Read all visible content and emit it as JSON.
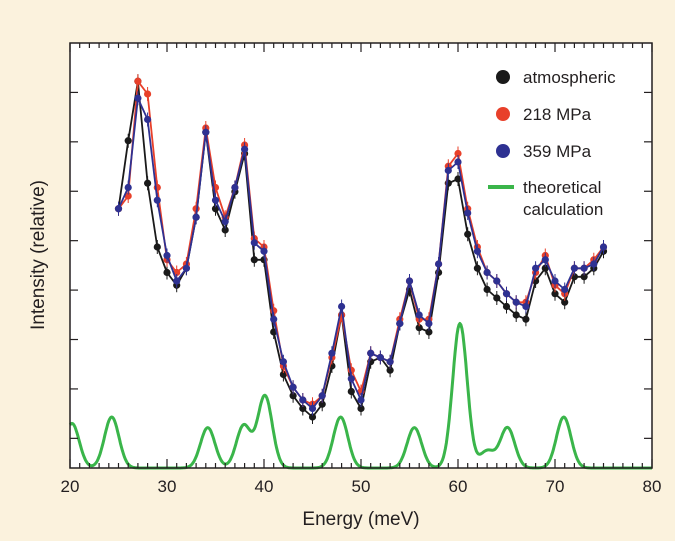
{
  "chart_data": {
    "type": "line",
    "xlabel": "Energy (meV)",
    "ylabel": "Intensity (relative)",
    "xlim": [
      20,
      80
    ],
    "ylim": [
      0,
      1
    ],
    "xticks": [
      20,
      30,
      40,
      50,
      60,
      70,
      80
    ],
    "yticks_labeled": false,
    "grid": false,
    "legend_position": "top-right",
    "x": [
      25,
      26,
      27,
      28,
      29,
      30,
      31,
      32,
      33,
      34,
      35,
      36,
      37,
      38,
      39,
      40,
      41,
      42,
      43,
      44,
      45,
      46,
      47,
      48,
      49,
      50,
      51,
      52,
      53,
      54,
      55,
      56,
      57,
      58,
      59,
      60,
      61,
      62,
      63,
      64,
      65,
      66,
      67,
      68,
      69,
      70,
      71,
      72,
      73,
      74,
      75
    ],
    "series": [
      {
        "name": "atmospheric",
        "marker": "circle",
        "color": "#1a1a1a",
        "values": [
          0.61,
          0.77,
          0.91,
          0.67,
          0.52,
          0.46,
          0.43,
          0.47,
          0.59,
          0.79,
          0.61,
          0.56,
          0.65,
          0.74,
          0.49,
          0.49,
          0.32,
          0.22,
          0.17,
          0.14,
          0.12,
          0.15,
          0.24,
          0.36,
          0.18,
          0.14,
          0.25,
          0.26,
          0.23,
          0.34,
          0.42,
          0.33,
          0.32,
          0.46,
          0.67,
          0.68,
          0.55,
          0.47,
          0.42,
          0.4,
          0.38,
          0.36,
          0.35,
          0.44,
          0.47,
          0.41,
          0.39,
          0.45,
          0.45,
          0.47,
          0.51
        ]
      },
      {
        "name": "218 MPa",
        "marker": "circle",
        "color": "#e8402a",
        "values": [
          0.61,
          0.64,
          0.91,
          0.88,
          0.66,
          0.49,
          0.46,
          0.48,
          0.61,
          0.8,
          0.66,
          0.59,
          0.66,
          0.76,
          0.54,
          0.52,
          0.37,
          0.24,
          0.19,
          0.16,
          0.15,
          0.17,
          0.26,
          0.36,
          0.23,
          0.18,
          0.27,
          0.26,
          0.25,
          0.35,
          0.44,
          0.35,
          0.35,
          0.48,
          0.71,
          0.74,
          0.61,
          0.52,
          0.46,
          0.44,
          0.41,
          0.39,
          0.39,
          0.46,
          0.5,
          0.43,
          0.41,
          0.47,
          0.47,
          0.49,
          0.52
        ]
      },
      {
        "name": "359 MPa",
        "marker": "circle",
        "color": "#2e3192",
        "values": [
          0.61,
          0.66,
          0.87,
          0.82,
          0.63,
          0.5,
          0.44,
          0.47,
          0.59,
          0.79,
          0.63,
          0.58,
          0.66,
          0.75,
          0.53,
          0.51,
          0.35,
          0.25,
          0.19,
          0.16,
          0.14,
          0.17,
          0.27,
          0.38,
          0.21,
          0.16,
          0.27,
          0.26,
          0.25,
          0.34,
          0.44,
          0.36,
          0.34,
          0.48,
          0.7,
          0.72,
          0.6,
          0.51,
          0.46,
          0.44,
          0.41,
          0.39,
          0.38,
          0.47,
          0.49,
          0.44,
          0.42,
          0.47,
          0.47,
          0.48,
          0.52
        ]
      },
      {
        "name": "theoretical\ncalculation",
        "style": "line",
        "color": "#3ab54a",
        "peaks": [
          {
            "center": 20.2,
            "height": 0.105
          },
          {
            "center": 24.3,
            "height": 0.12
          },
          {
            "center": 34.2,
            "height": 0.095
          },
          {
            "center": 37.9,
            "height": 0.1
          },
          {
            "center": 40.1,
            "height": 0.17
          },
          {
            "center": 47.9,
            "height": 0.12
          },
          {
            "center": 55.5,
            "height": 0.095
          },
          {
            "center": 60.2,
            "height": 0.34
          },
          {
            "center": 63.0,
            "height": 0.04
          },
          {
            "center": 65.1,
            "height": 0.095
          },
          {
            "center": 70.9,
            "height": 0.12
          }
        ]
      }
    ]
  }
}
